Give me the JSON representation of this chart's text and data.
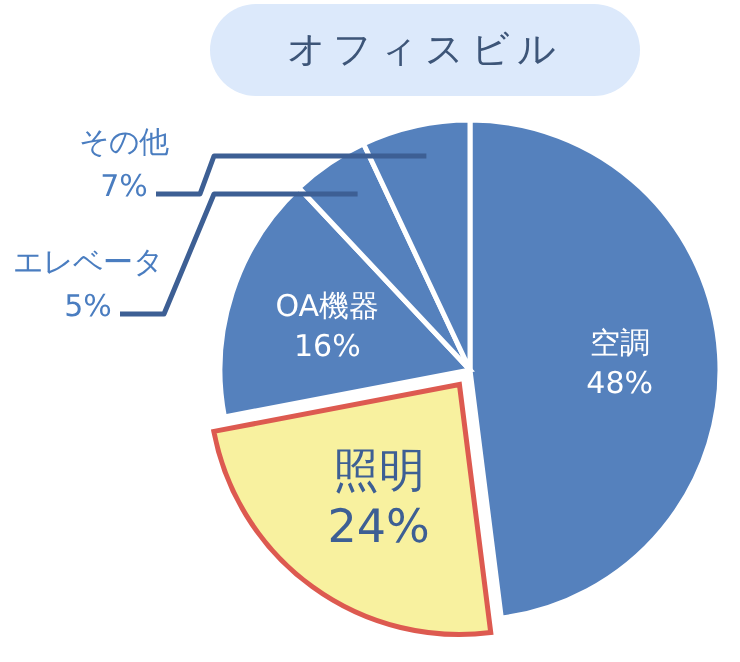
{
  "chart_data": {
    "type": "pie",
    "title": "オフィスビル",
    "categories": [
      "空調",
      "照明",
      "OA機器",
      "エレベータ",
      "その他"
    ],
    "values": [
      48,
      24,
      16,
      5,
      7
    ],
    "colors": [
      "#5581bd",
      "#f8f19f",
      "#5581bd",
      "#5581bd",
      "#5581bd"
    ],
    "value_labels": [
      "48%",
      "24%",
      "16%",
      "5%",
      "7%"
    ]
  }
}
